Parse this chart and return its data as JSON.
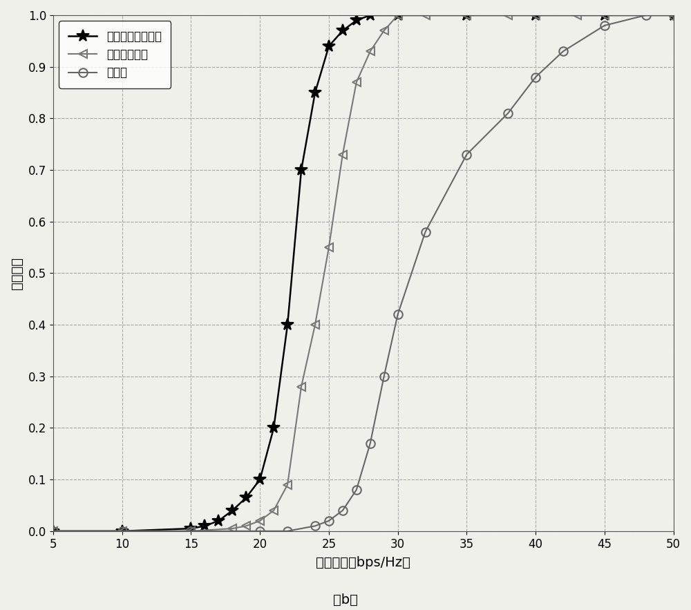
{
  "series": [
    {
      "label": "传统波束成形方法",
      "color": "#000000",
      "marker": "*",
      "markersize": 13,
      "linewidth": 1.8,
      "x": [
        5,
        10,
        15,
        16,
        17,
        18,
        19,
        20,
        21,
        22,
        23,
        24,
        25,
        26,
        27,
        28,
        30,
        35,
        40,
        45,
        50
      ],
      "y": [
        0.0,
        0.0,
        0.005,
        0.01,
        0.02,
        0.04,
        0.065,
        0.1,
        0.2,
        0.4,
        0.7,
        0.85,
        0.94,
        0.97,
        0.99,
        1.0,
        1.0,
        1.0,
        1.0,
        1.0,
        1.0
      ]
    },
    {
      "label": "传统能效优化",
      "color": "#777777",
      "marker": "<",
      "markersize": 9,
      "linewidth": 1.5,
      "x": [
        5,
        10,
        15,
        18,
        19,
        20,
        21,
        22,
        23,
        24,
        25,
        26,
        27,
        28,
        29,
        30,
        32,
        35,
        38,
        40,
        43,
        45,
        50
      ],
      "y": [
        0.0,
        0.0,
        0.0,
        0.005,
        0.01,
        0.02,
        0.04,
        0.09,
        0.28,
        0.4,
        0.55,
        0.73,
        0.87,
        0.93,
        0.97,
        1.0,
        1.0,
        1.0,
        1.0,
        1.0,
        1.0,
        1.0,
        1.0
      ]
    },
    {
      "label": "本方案",
      "color": "#666666",
      "marker": "o",
      "markersize": 9,
      "linewidth": 1.5,
      "x": [
        5,
        10,
        15,
        20,
        22,
        24,
        25,
        26,
        27,
        28,
        29,
        30,
        32,
        35,
        38,
        40,
        42,
        45,
        48,
        50
      ],
      "y": [
        0.0,
        0.0,
        0.0,
        0.0,
        0.0,
        0.01,
        0.02,
        0.04,
        0.08,
        0.17,
        0.3,
        0.42,
        0.58,
        0.73,
        0.81,
        0.88,
        0.93,
        0.98,
        1.0,
        1.0
      ]
    }
  ],
  "xlim": [
    5,
    50
  ],
  "ylim": [
    0,
    1
  ],
  "xticks": [
    5,
    10,
    15,
    20,
    25,
    30,
    35,
    40,
    45,
    50
  ],
  "yticks": [
    0,
    0.1,
    0.2,
    0.3,
    0.4,
    0.5,
    0.6,
    0.7,
    0.8,
    0.9,
    1
  ],
  "xlabel": "频谱效率（bps/Hz）",
  "ylabel": "中断概率",
  "caption": "（b）",
  "grid_major_color": "#aaaaaa",
  "grid_minor_color": "#bbbbbb",
  "background_color": "#f0f0eb",
  "legend_loc": "upper left"
}
